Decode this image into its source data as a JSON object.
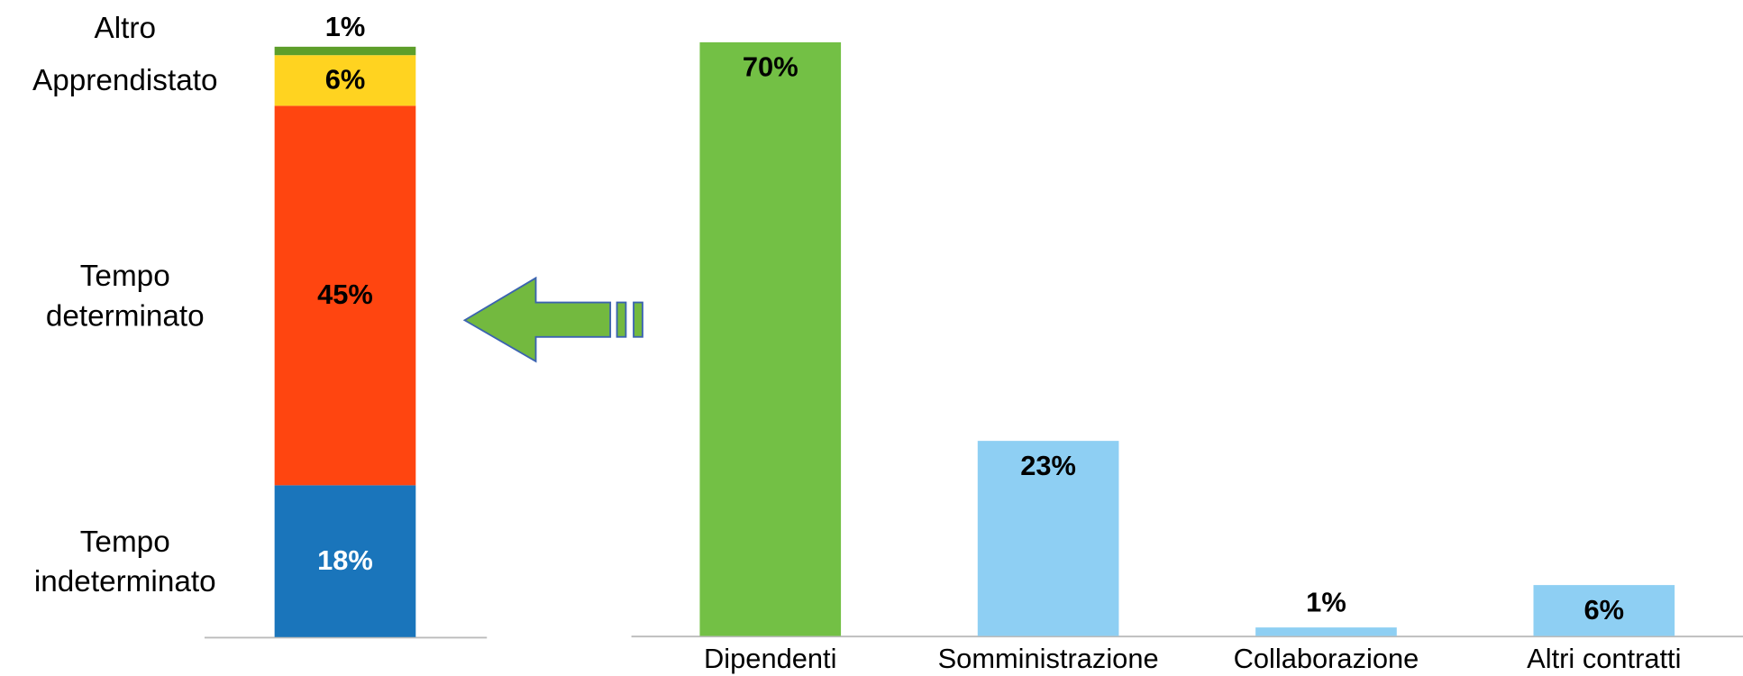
{
  "chart_data": [
    {
      "type": "stacked_bar",
      "series": [
        {
          "name": "Tempo indeterminato",
          "color": "#1a75bb",
          "values": [
            18
          ],
          "value_labels": [
            "18%"
          ]
        },
        {
          "name": "Tempo determinato",
          "color": "#ff4510",
          "values": [
            45
          ],
          "value_labels": [
            "45%"
          ]
        },
        {
          "name": "Apprendistato",
          "color": "#ffd320",
          "values": [
            6
          ],
          "value_labels": [
            "6%"
          ]
        },
        {
          "name": "Altro",
          "color": "#5d9e2a",
          "values": [
            1
          ],
          "value_labels": [
            "1%"
          ]
        }
      ],
      "ylim": [
        0,
        70
      ]
    },
    {
      "type": "bar",
      "categories": [
        "Dipendenti",
        "Somministrazione",
        "Collaborazione",
        "Altri contratti"
      ],
      "values": [
        70,
        23,
        1,
        6
      ],
      "value_labels": [
        "70%",
        "23%",
        "1%",
        "6%"
      ],
      "colors": [
        "#73c045",
        "#8ecff3",
        "#8ecff3",
        "#8ecff3"
      ],
      "ylim": [
        0,
        70
      ]
    }
  ]
}
